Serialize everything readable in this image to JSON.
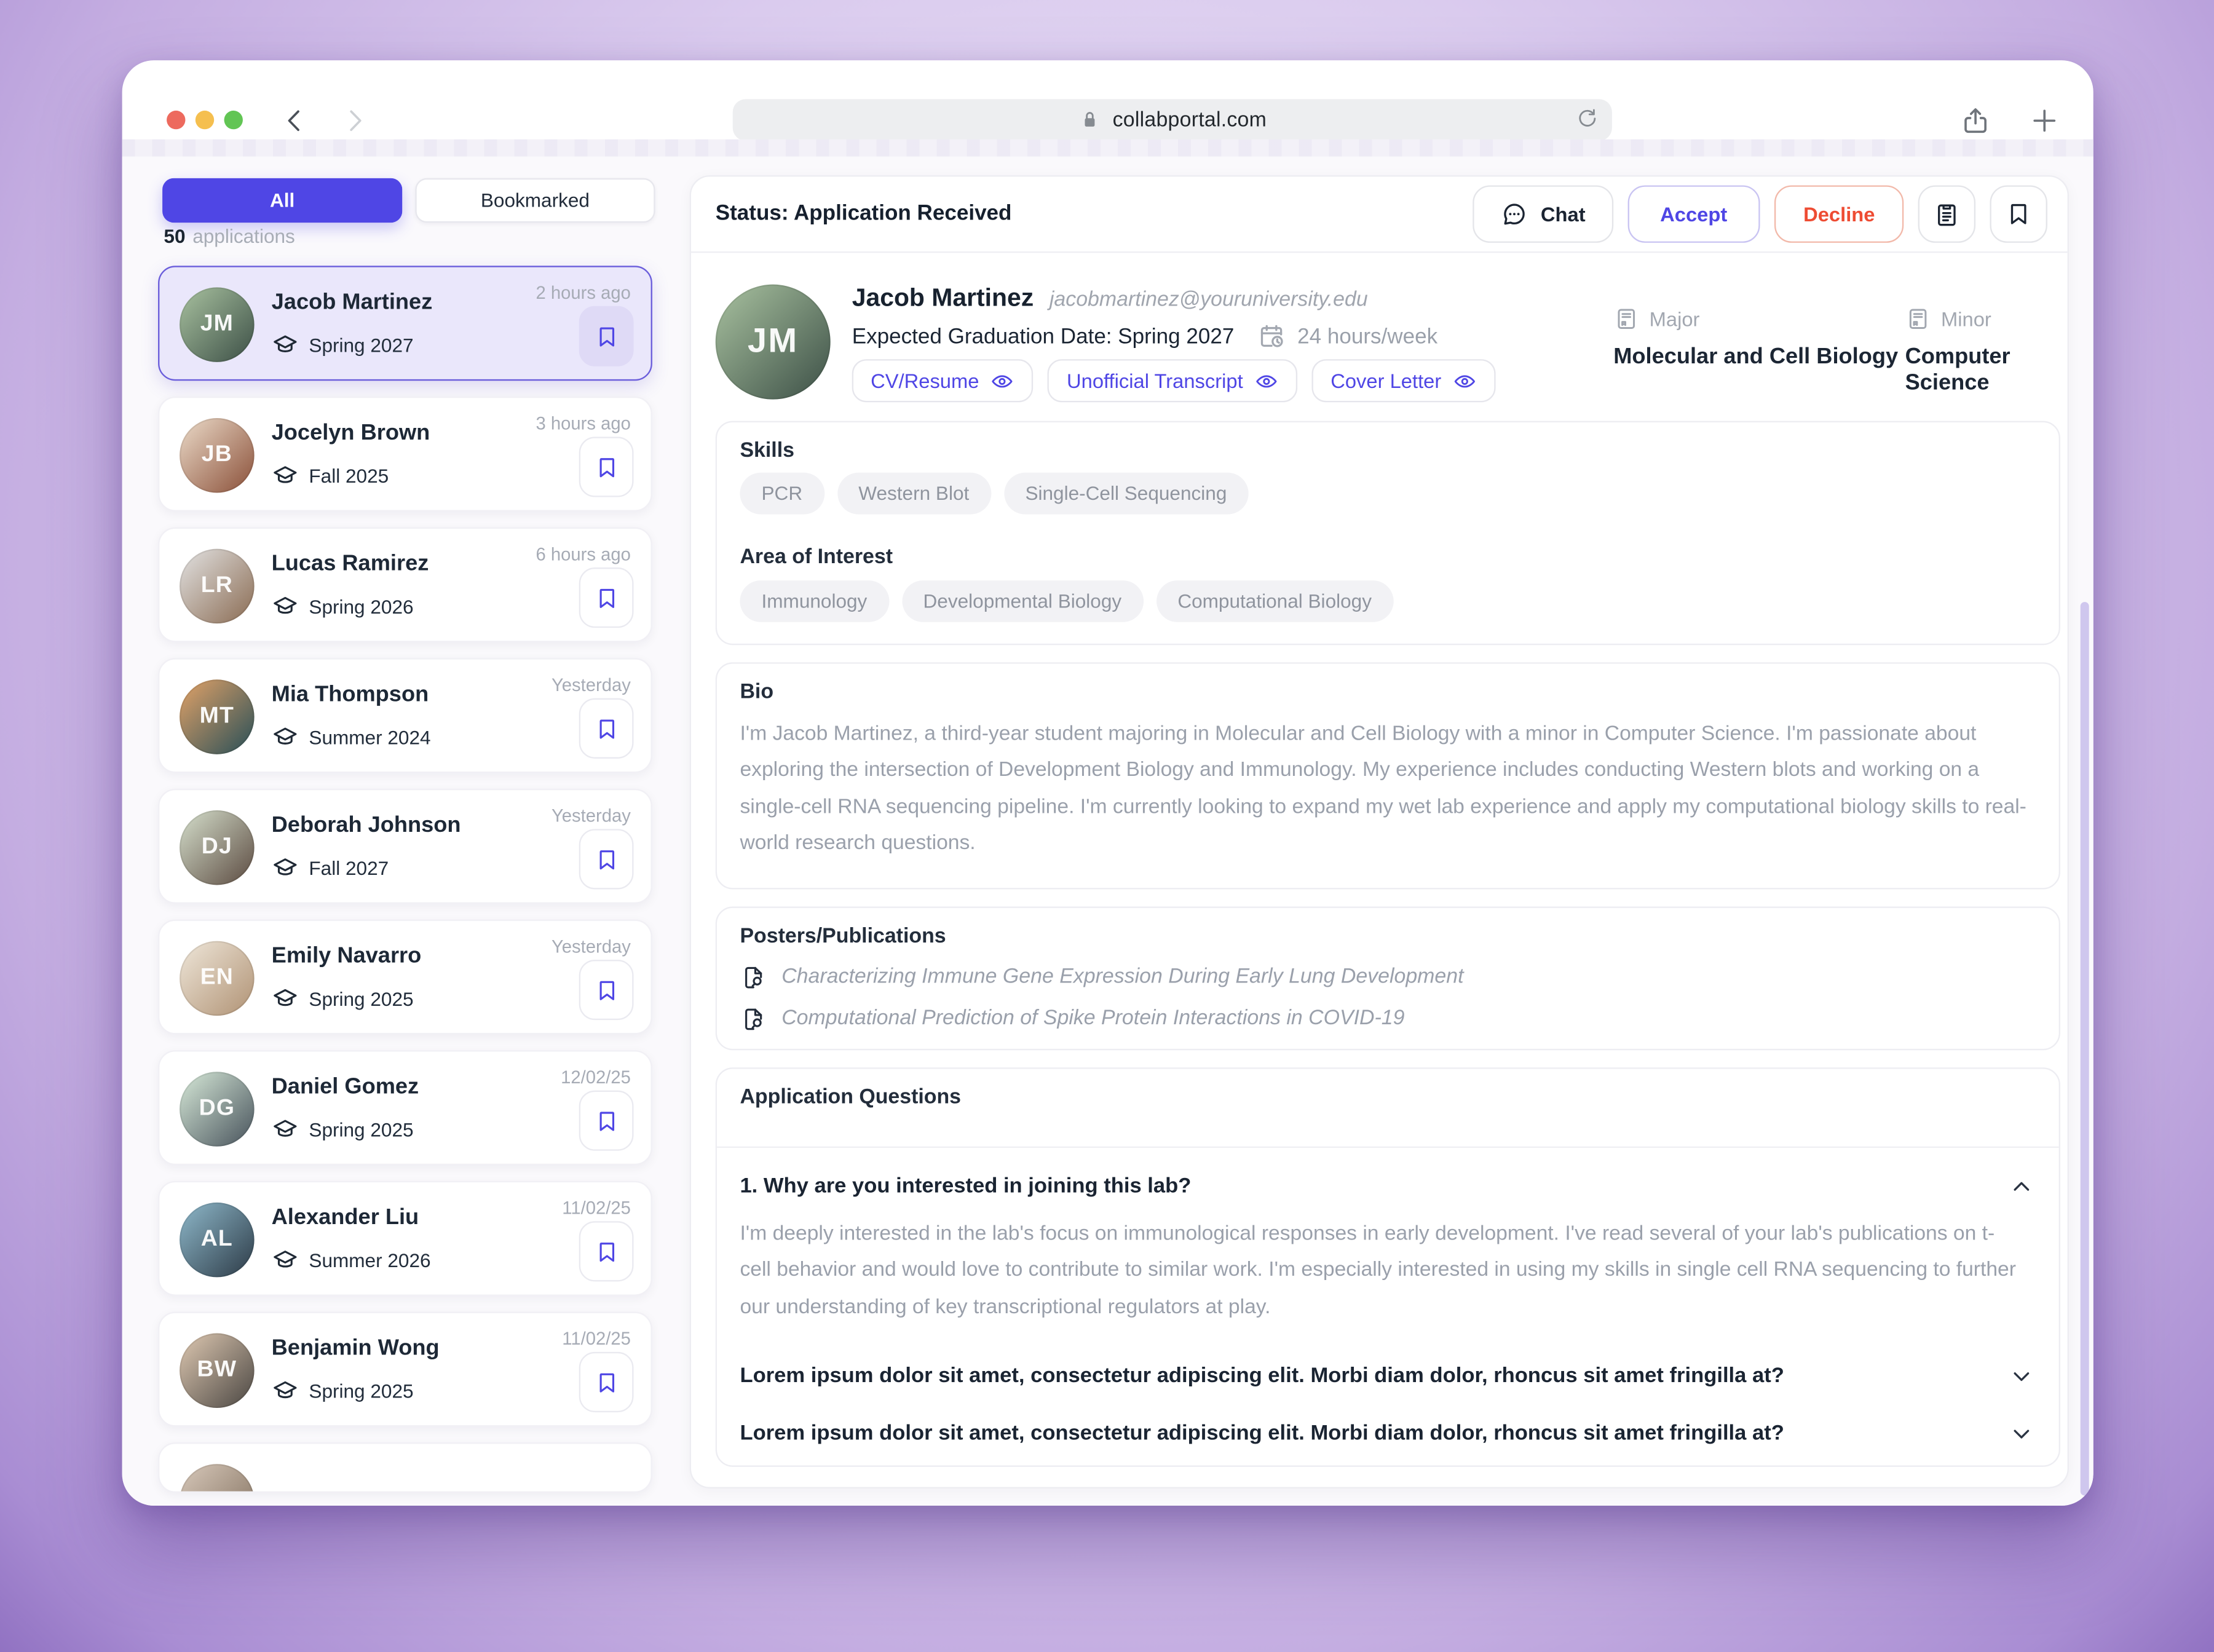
{
  "browser": {
    "url": "collabportal.com",
    "icons": [
      "lock-icon",
      "reload-icon",
      "back-icon",
      "forward-icon",
      "share-icon",
      "new-tab-icon"
    ],
    "traffic_lights": {
      "close": "#ed6a5e",
      "minimize": "#f5bf4f",
      "zoom": "#62c554"
    }
  },
  "sidebar": {
    "tabs": [
      {
        "label": "All",
        "active": true
      },
      {
        "label": "Bookmarked",
        "active": false
      }
    ],
    "count": "50",
    "count_suffix": "applications",
    "applicants": [
      {
        "name": "Jacob Martinez",
        "term": "Spring 2027",
        "time": "2 hours ago",
        "selected": true,
        "initials": "JM",
        "avatar_from": "#a9c2a0",
        "avatar_to": "#3c4f46"
      },
      {
        "name": "Jocelyn Brown",
        "term": "Fall 2025",
        "time": "3 hours ago",
        "selected": false,
        "initials": "JB",
        "avatar_from": "#ecdcca",
        "avatar_to": "#8a4f38"
      },
      {
        "name": "Lucas Ramirez",
        "term": "Spring 2026",
        "time": "6 hours ago",
        "selected": false,
        "initials": "LR",
        "avatar_from": "#e3e3e3",
        "avatar_to": "#8a6b52"
      },
      {
        "name": "Mia Thompson",
        "term": "Summer 2024",
        "time": "Yesterday",
        "selected": false,
        "initials": "MT",
        "avatar_from": "#e3a368",
        "avatar_to": "#274e57"
      },
      {
        "name": "Deborah Johnson",
        "term": "Fall 2027",
        "time": "Yesterday",
        "selected": false,
        "initials": "DJ",
        "avatar_from": "#d6e0cd",
        "avatar_to": "#5b4a40"
      },
      {
        "name": "Emily Navarro",
        "term": "Spring 2025",
        "time": "Yesterday",
        "selected": false,
        "initials": "EN",
        "avatar_from": "#efe7da",
        "avatar_to": "#b09274"
      },
      {
        "name": "Daniel Gomez",
        "term": "Spring 2025",
        "time": "12/02/25",
        "selected": false,
        "initials": "DG",
        "avatar_from": "#d8ead9",
        "avatar_to": "#47525b"
      },
      {
        "name": "Alexander Liu",
        "term": "Summer 2026",
        "time": "11/02/25",
        "selected": false,
        "initials": "AL",
        "avatar_from": "#8fb9cb",
        "avatar_to": "#2c3a46"
      },
      {
        "name": "Benjamin Wong",
        "term": "Spring 2025",
        "time": "11/02/25",
        "selected": false,
        "initials": "BW",
        "avatar_from": "#dfc9b2",
        "avatar_to": "#4a4642"
      }
    ],
    "partial_item": {
      "avatar_from": "#d8c9bb",
      "avatar_to": "#7c6a58"
    }
  },
  "main": {
    "status": "Status: Application Received",
    "actions": {
      "chat": "Chat",
      "accept": "Accept",
      "decline": "Decline"
    },
    "profile": {
      "name": "Jacob Martinez",
      "email": "jacobmartinez@youruniversity.edu",
      "grad": "Expected Graduation Date: Spring 2027",
      "hours": "24 hours/week",
      "initials": "JM",
      "avatar_from": "#a9c2a0",
      "avatar_to": "#3c4f46",
      "documents": [
        "CV/Resume",
        "Unofficial Transcript",
        "Cover Letter"
      ],
      "major_label": "Major",
      "major": "Molecular and Cell Biology",
      "minor_label": "Minor",
      "minor": "Computer Science"
    },
    "skills": {
      "title": "Skills",
      "items": [
        "PCR",
        "Western Blot",
        "Single-Cell Sequencing"
      ]
    },
    "interests": {
      "title": "Area of Interest",
      "items": [
        "Immunology",
        "Developmental Biology",
        "Computational Biology"
      ]
    },
    "bio": {
      "title": "Bio",
      "text": "I'm Jacob Martinez, a third-year student majoring in Molecular and Cell Biology with a minor in Computer Science. I'm passionate about exploring the intersection of Development Biology and Immunology. My experience includes conducting Western blots and working on a single-cell RNA sequencing pipeline. I'm currently looking to expand my wet lab experience and apply my computational biology skills to real-world research questions."
    },
    "publications": {
      "title": "Posters/Publications",
      "items": [
        "Characterizing Immune Gene Expression During Early Lung Development",
        "Computational Prediction of Spike Protein Interactions in COVID-19"
      ]
    },
    "questions": {
      "title": "Application Questions",
      "items": [
        {
          "q": "1. Why are you interested in joining this lab?",
          "expanded": true,
          "answer": "I'm deeply interested in the lab's focus on immunological responses in early development. I've read several of your lab's publications on t-cell behavior and would love to contribute to similar work. I'm especially interested in using my skills in single cell RNA sequencing to further our understanding of key transcriptional regulators at play."
        },
        {
          "q": "Lorem ipsum dolor sit amet, consectetur adipiscing elit. Morbi diam dolor, rhoncus sit amet fringilla at?",
          "expanded": false
        },
        {
          "q": "Lorem ipsum dolor sit amet, consectetur adipiscing elit. Morbi diam dolor, rhoncus sit amet fringilla at?",
          "expanded": false
        }
      ]
    }
  },
  "colors": {
    "accent": "#4f46e5",
    "decline": "#ee4c33",
    "selected_card_bg": "#eae7fb",
    "selected_card_border": "#6a5ddb"
  }
}
